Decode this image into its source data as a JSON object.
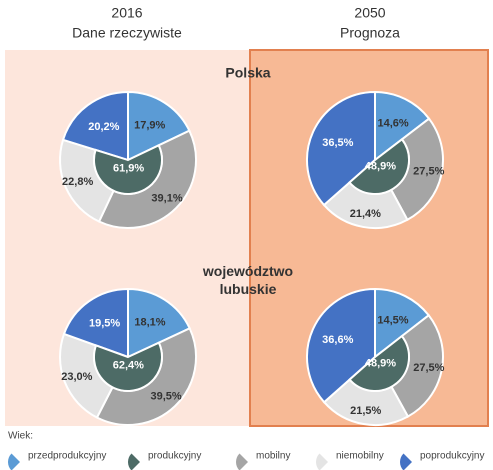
{
  "header": {
    "columns": [
      {
        "year": "2016",
        "label": "Dane rzeczywiste"
      },
      {
        "year": "2050",
        "label": "Prognoza"
      }
    ],
    "rows": [
      "Polska",
      "województwo lubuskie"
    ]
  },
  "legend": {
    "title": "Wiek:",
    "items": [
      {
        "name": "przedprodukcyjny",
        "color": "#5b9bd5"
      },
      {
        "name": "produkcyjny",
        "color": "#4d6b66"
      },
      {
        "name": "mobilny",
        "color": "#a5a5a5"
      },
      {
        "name": "niemobilny",
        "color": "#e4e4e4"
      },
      {
        "name": "poprodukcyjny",
        "color": "#4472c4"
      }
    ]
  },
  "chart_data": [
    {
      "type": "pie",
      "values": [
        17.9,
        39.1,
        22.8,
        20.2
      ],
      "value_labels": [
        "17,9%",
        "39,1%",
        "22,8%",
        "20,2%"
      ],
      "inner_value": 61.9,
      "inner_label": "61,9%"
    },
    {
      "type": "pie",
      "values": [
        14.6,
        27.5,
        21.4,
        36.5
      ],
      "value_labels": [
        "14,6%",
        "27,5%",
        "21,4%",
        "36,5%"
      ],
      "inner_value": 48.9,
      "inner_label": "48,9%"
    },
    {
      "type": "pie",
      "values": [
        18.1,
        39.5,
        23.0,
        19.5
      ],
      "value_labels": [
        "18,1%",
        "39,5%",
        "23,0%",
        "19,5%"
      ],
      "inner_value": 62.4,
      "inner_label": "62,4%"
    },
    {
      "type": "pie",
      "values": [
        14.5,
        27.5,
        21.5,
        36.6
      ],
      "value_labels": [
        "14,5%",
        "27,5%",
        "21,5%",
        "36,6%"
      ],
      "inner_value": 48.9,
      "inner_label": "48,9%"
    }
  ]
}
